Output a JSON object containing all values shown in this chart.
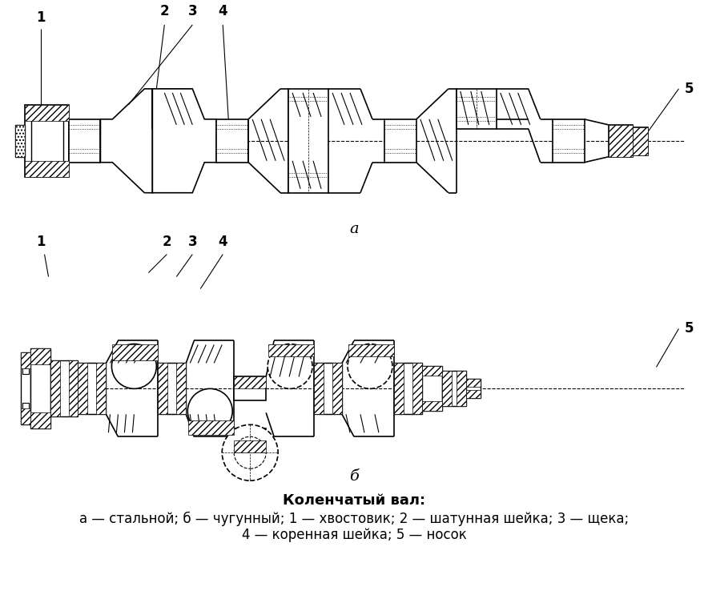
{
  "title": "Коленчатый вал:",
  "caption_line1": "а — стальной; б — чугунный; 1 — хвостовик; 2 — шатунная шейка; 3 — щека;",
  "caption_line2": "4 — коренная шейка; 5 — носок",
  "label_a": "а",
  "label_b": "б",
  "bg_color": "#ffffff",
  "line_color": "#000000",
  "labels": [
    "1",
    "2",
    "3",
    "4",
    "5"
  ],
  "title_fontsize": 13,
  "caption_fontsize": 12,
  "label_fontsize": 13
}
